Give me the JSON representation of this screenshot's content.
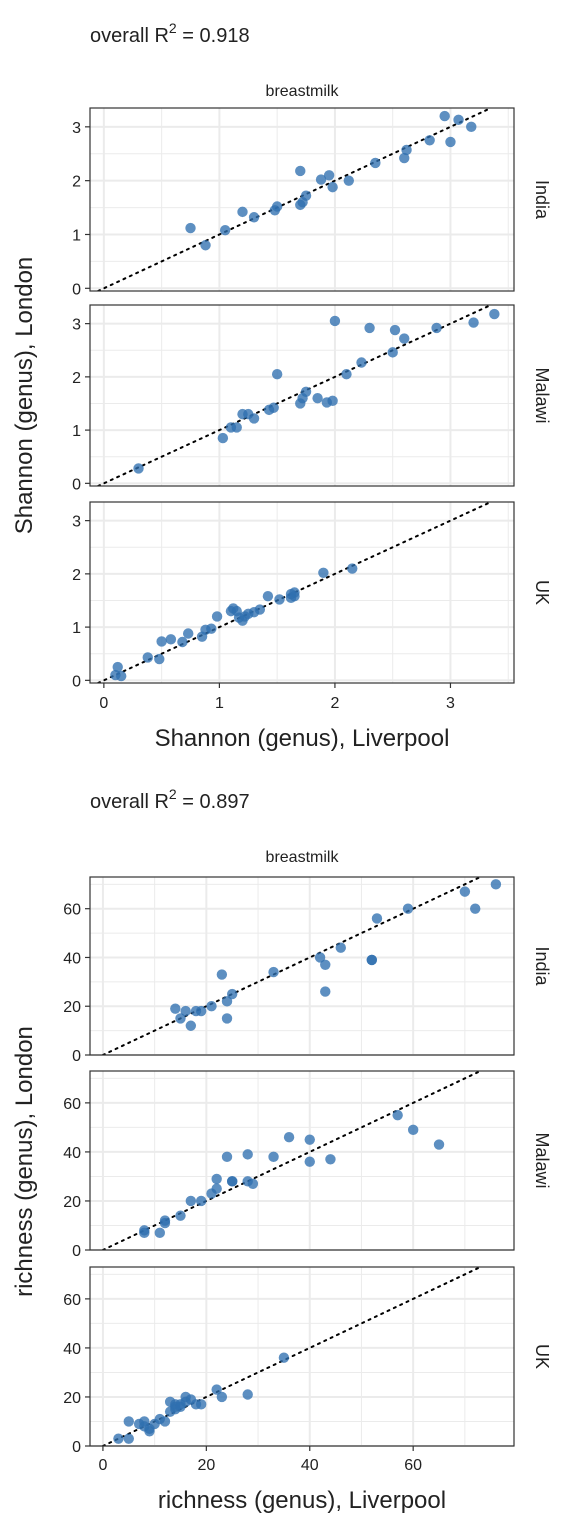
{
  "chart_data": [
    {
      "type": "scatter",
      "annotation": {
        "prefix": "overall R",
        "superscript": "2",
        "suffix": " =  0.918"
      },
      "facet_title": "breastmilk",
      "xlabel": "Shannon (genus), Liverpool",
      "ylabel": "Shannon (genus), London",
      "xlim": [
        -0.12,
        3.55
      ],
      "ylim": [
        -0.05,
        3.35
      ],
      "xticks": [
        0,
        1,
        2,
        3
      ],
      "yticks": [
        0,
        1,
        2,
        3
      ],
      "reference_line": "y = x (dotted)",
      "point_color": "#2f6fb0",
      "grid": true,
      "panels": [
        {
          "row": "India",
          "x": [
            0.75,
            0.88,
            1.05,
            1.2,
            1.3,
            1.48,
            1.5,
            1.7,
            1.72,
            1.75,
            1.7,
            1.88,
            1.95,
            1.98,
            2.12,
            2.35,
            2.6,
            2.62,
            2.82,
            2.95,
            3.0,
            3.07,
            3.18
          ],
          "y": [
            1.12,
            0.8,
            1.08,
            1.42,
            1.32,
            1.45,
            1.52,
            2.18,
            1.6,
            1.72,
            1.55,
            2.02,
            2.1,
            1.88,
            2.0,
            2.33,
            2.42,
            2.57,
            2.75,
            3.2,
            2.72,
            3.13,
            3.0
          ]
        },
        {
          "row": "Malawi",
          "x": [
            0.3,
            1.03,
            1.1,
            1.15,
            1.2,
            1.25,
            1.3,
            1.43,
            1.47,
            1.5,
            1.7,
            1.72,
            1.75,
            1.85,
            1.93,
            1.98,
            2.0,
            2.1,
            2.23,
            2.3,
            2.5,
            2.52,
            2.6,
            2.88,
            3.2,
            3.38
          ],
          "y": [
            0.28,
            0.85,
            1.05,
            1.05,
            1.3,
            1.3,
            1.22,
            1.38,
            1.42,
            2.05,
            1.5,
            1.6,
            1.72,
            1.6,
            1.52,
            1.55,
            3.05,
            2.05,
            2.27,
            2.92,
            2.46,
            2.88,
            2.72,
            2.92,
            3.02,
            3.18
          ]
        },
        {
          "row": "UK",
          "x": [
            0.1,
            0.12,
            0.15,
            0.38,
            0.48,
            0.5,
            0.58,
            0.68,
            0.73,
            0.85,
            0.88,
            0.93,
            0.98,
            1.1,
            1.12,
            1.15,
            1.17,
            1.2,
            1.22,
            1.25,
            1.3,
            1.35,
            1.42,
            1.52,
            1.62,
            1.62,
            1.65,
            1.65,
            1.9,
            2.15
          ],
          "y": [
            0.1,
            0.25,
            0.08,
            0.43,
            0.4,
            0.73,
            0.77,
            0.72,
            0.88,
            0.82,
            0.95,
            0.97,
            1.2,
            1.3,
            1.35,
            1.3,
            1.18,
            1.12,
            1.2,
            1.25,
            1.28,
            1.33,
            1.58,
            1.52,
            1.55,
            1.62,
            1.65,
            1.58,
            2.02,
            2.1
          ]
        }
      ]
    },
    {
      "type": "scatter",
      "annotation": {
        "prefix": "overall R",
        "superscript": "2",
        "suffix": " =  0.897"
      },
      "facet_title": "breastmilk",
      "xlabel": "richness (genus), Liverpool",
      "ylabel": "richness (genus), London",
      "xlim": [
        -2.5,
        79.5
      ],
      "ylim": [
        0,
        73
      ],
      "xticks": [
        0,
        20,
        40,
        60
      ],
      "yticks": [
        0,
        20,
        40,
        60
      ],
      "reference_line": "y = x (dotted)",
      "point_color": "#2f6fb0",
      "grid": true,
      "panels": [
        {
          "row": "India",
          "x": [
            14,
            15,
            16,
            17,
            18,
            19,
            21,
            23,
            24,
            24,
            25,
            33,
            42,
            43,
            43,
            46,
            52,
            52,
            53,
            59,
            70,
            72,
            76
          ],
          "y": [
            19,
            15,
            18,
            12,
            18,
            18,
            20,
            33,
            22,
            15,
            25,
            34,
            40,
            37,
            26,
            44,
            39,
            39,
            56,
            60,
            67,
            60,
            70
          ]
        },
        {
          "row": "Malawi",
          "x": [
            8,
            8,
            11,
            12,
            12,
            15,
            17,
            19,
            21,
            22,
            22,
            24,
            25,
            25,
            28,
            28,
            29,
            33,
            36,
            40,
            40,
            44,
            57,
            60,
            65
          ],
          "y": [
            8,
            7,
            7,
            11,
            12,
            14,
            20,
            20,
            23,
            25,
            29,
            38,
            28,
            28,
            39,
            28,
            27,
            38,
            46,
            45,
            36,
            37,
            55,
            49,
            43
          ]
        },
        {
          "row": "UK",
          "x": [
            3,
            5,
            5,
            7,
            8,
            8,
            9,
            9,
            10,
            11,
            12,
            13,
            13,
            14,
            14,
            14,
            15,
            15,
            16,
            16,
            17,
            18,
            19,
            22,
            23,
            28,
            35
          ],
          "y": [
            3,
            10,
            3,
            9,
            8,
            10,
            7,
            6,
            9,
            11,
            10,
            18,
            14,
            16,
            15,
            17,
            17,
            16,
            18,
            20,
            19,
            17,
            17,
            23,
            20,
            21,
            36
          ]
        }
      ]
    }
  ]
}
